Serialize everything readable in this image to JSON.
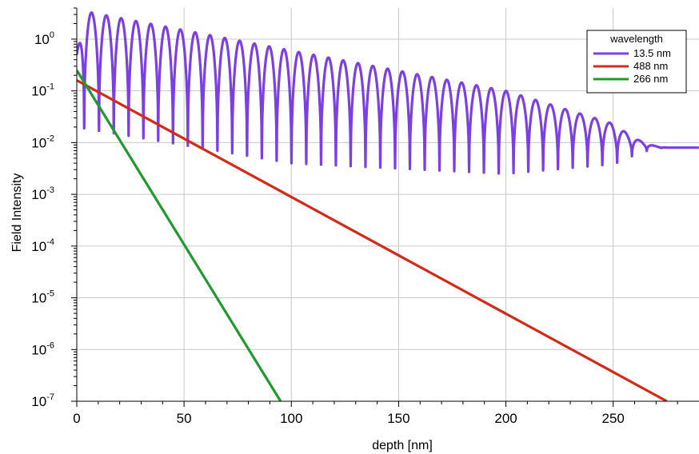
{
  "chart_data": {
    "type": "line",
    "xlabel": "depth [nm]",
    "ylabel": "Field Intensity",
    "xlim": [
      0,
      290
    ],
    "ylim": [
      1e-07,
      4
    ],
    "yscale": "log",
    "grid": true,
    "x_ticks": [
      0,
      50,
      100,
      150,
      200,
      250
    ],
    "y_ticks": [
      {
        "value": 1,
        "base": "10",
        "exp": "0"
      },
      {
        "value": 0.1,
        "base": "10",
        "exp": "-1"
      },
      {
        "value": 0.01,
        "base": "10",
        "exp": "-2"
      },
      {
        "value": 0.001,
        "base": "10",
        "exp": "-3"
      },
      {
        "value": 0.0001,
        "base": "10",
        "exp": "-4"
      },
      {
        "value": 1e-05,
        "base": "10",
        "exp": "-5"
      },
      {
        "value": 1e-06,
        "base": "10",
        "exp": "-6"
      },
      {
        "value": 1e-07,
        "base": "10",
        "exp": "-7"
      }
    ],
    "legend": {
      "title": "wavelength",
      "placement": "top-right"
    },
    "series": [
      {
        "name": "13.5 nm",
        "color": "#7b3fe4",
        "style": "oscillating",
        "x_start": 0,
        "x_end": 290,
        "period": 6.9,
        "peak": [
          [
            0,
            0.5
          ],
          [
            3,
            3.5
          ],
          [
            100,
            0.6
          ],
          [
            200,
            0.1
          ],
          [
            255,
            0.02
          ],
          [
            275,
            0.009
          ],
          [
            290,
            0.008
          ]
        ],
        "trough": [
          [
            0,
            0.02
          ],
          [
            100,
            0.004
          ],
          [
            200,
            0.0025
          ],
          [
            255,
            0.004
          ],
          [
            275,
            0.007
          ],
          [
            290,
            0.008
          ]
        ],
        "damping_start": 250,
        "damping_end": 275,
        "tail_value": 0.008
      },
      {
        "name": "488 nm",
        "color": "#d42a1a",
        "x": [
          0,
          275
        ],
        "y": [
          0.16,
          1e-07
        ]
      },
      {
        "name": "266 nm",
        "color": "#1f9a2e",
        "x": [
          0,
          95
        ],
        "y": [
          0.25,
          1e-07
        ]
      }
    ]
  }
}
